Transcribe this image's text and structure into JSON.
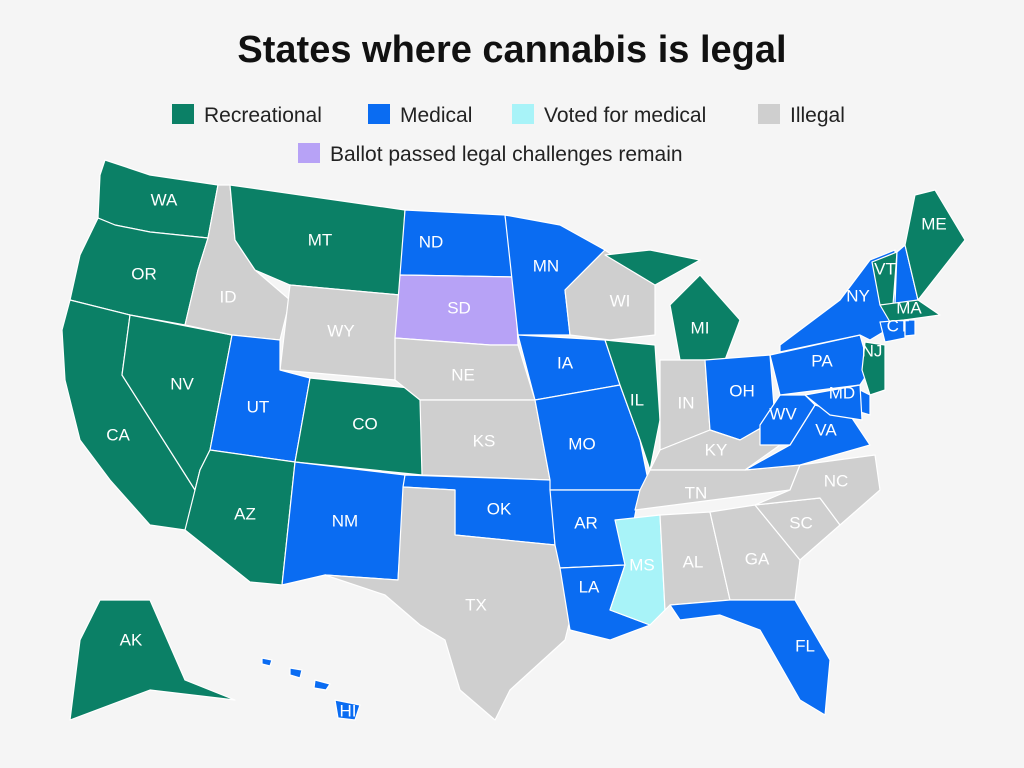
{
  "title": "States where cannabis is legal",
  "legend": [
    {
      "label": "Recreational",
      "color": "#0b8066"
    },
    {
      "label": "Medical",
      "color": "#0a6cf2"
    },
    {
      "label": "Voted for medical",
      "color": "#a8f3f8"
    },
    {
      "label": "Illegal",
      "color": "#cfcfcf"
    },
    {
      "label": "Ballot passed legal challenges remain",
      "color": "#b7a2f6"
    }
  ],
  "states": [
    {
      "label": "WA",
      "color": "#0b8066"
    },
    {
      "label": "OR",
      "color": "#0b8066"
    },
    {
      "label": "CA",
      "color": "#0b8066"
    },
    {
      "label": "NV",
      "color": "#0b8066"
    },
    {
      "label": "ID",
      "color": "#cfcfcf"
    },
    {
      "label": "MT",
      "color": "#0b8066"
    },
    {
      "label": "WY",
      "color": "#cfcfcf"
    },
    {
      "label": "UT",
      "color": "#0a6cf2"
    },
    {
      "label": "CO",
      "color": "#0b8066"
    },
    {
      "label": "AZ",
      "color": "#0b8066"
    },
    {
      "label": "NM",
      "color": "#0a6cf2"
    },
    {
      "label": "ND",
      "color": "#0a6cf2"
    },
    {
      "label": "SD",
      "color": "#b7a2f6"
    },
    {
      "label": "NE",
      "color": "#cfcfcf"
    },
    {
      "label": "KS",
      "color": "#cfcfcf"
    },
    {
      "label": "OK",
      "color": "#0a6cf2"
    },
    {
      "label": "TX",
      "color": "#cfcfcf"
    },
    {
      "label": "MN",
      "color": "#0a6cf2"
    },
    {
      "label": "IA",
      "color": "#0a6cf2"
    },
    {
      "label": "MO",
      "color": "#0a6cf2"
    },
    {
      "label": "AR",
      "color": "#0a6cf2"
    },
    {
      "label": "LA",
      "color": "#0a6cf2"
    },
    {
      "label": "WI",
      "color": "#cfcfcf"
    },
    {
      "label": "IL",
      "color": "#0b8066"
    },
    {
      "label": "MI",
      "color": "#0b8066"
    },
    {
      "label": "IN",
      "color": "#cfcfcf"
    },
    {
      "label": "OH",
      "color": "#0a6cf2"
    },
    {
      "label": "KY",
      "color": "#cfcfcf"
    },
    {
      "label": "TN",
      "color": "#cfcfcf"
    },
    {
      "label": "MS",
      "color": "#a8f3f8"
    },
    {
      "label": "AL",
      "color": "#cfcfcf"
    },
    {
      "label": "GA",
      "color": "#cfcfcf"
    },
    {
      "label": "FL",
      "color": "#0a6cf2"
    },
    {
      "label": "SC",
      "color": "#cfcfcf"
    },
    {
      "label": "NC",
      "color": "#cfcfcf"
    },
    {
      "label": "VA",
      "color": "#0a6cf2"
    },
    {
      "label": "WV",
      "color": "#0a6cf2"
    },
    {
      "label": "PA",
      "color": "#0a6cf2"
    },
    {
      "label": "NY",
      "color": "#0a6cf2"
    },
    {
      "label": "VT",
      "color": "#0b8066"
    },
    {
      "label": null,
      "color": "#0a6cf2"
    },
    {
      "label": "ME",
      "color": "#0b8066"
    },
    {
      "label": "MA",
      "color": "#0b8066"
    },
    {
      "label": "CT",
      "color": "#0a6cf2"
    },
    {
      "label": null,
      "color": "#0a6cf2"
    },
    {
      "label": "NJ",
      "color": "#0b8066"
    },
    {
      "label": null,
      "color": "#0a6cf2"
    },
    {
      "label": "MD",
      "color": "#0a6cf2"
    },
    {
      "label": "AK",
      "color": "#0b8066"
    },
    {
      "label": "HI",
      "color": "#0a6cf2"
    }
  ]
}
